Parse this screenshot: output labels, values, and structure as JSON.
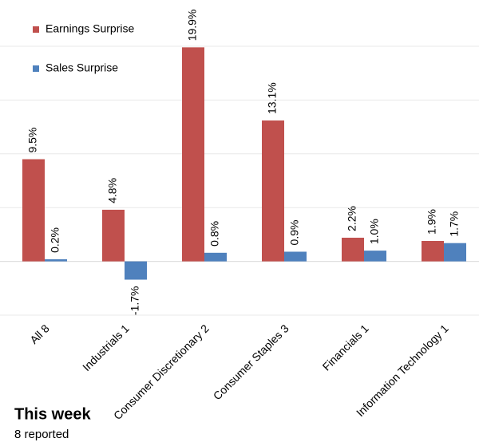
{
  "chart_data": {
    "type": "bar",
    "categories": [
      "All 8",
      "Industrials 1",
      "Consumer Discretionary 2",
      "Consumer Staples 3",
      "Financials 1",
      "Information Technology 1"
    ],
    "series": [
      {
        "name": "Earnings Surprise",
        "color": "#c0504d",
        "values": [
          9.5,
          4.8,
          19.9,
          13.1,
          2.2,
          1.9
        ],
        "value_labels": [
          "9.5%",
          "4.8%",
          "19.9%",
          "13.1%",
          "2.2%",
          "1.9%"
        ]
      },
      {
        "name": "Sales Surprise",
        "color": "#4f81bd",
        "values": [
          0.2,
          -1.7,
          0.8,
          0.9,
          1.0,
          1.7
        ],
        "value_labels": [
          "0.2%",
          "-1.7%",
          "0.8%",
          "0.9%",
          "1.0%",
          "1.7%"
        ]
      }
    ],
    "ylim": [
      -5,
      20
    ],
    "yticks": [
      -5,
      0,
      5,
      10,
      15,
      20
    ],
    "grid": true,
    "legend": "top-left"
  },
  "footer": {
    "title": "This week",
    "subtitle": "8 reported"
  }
}
